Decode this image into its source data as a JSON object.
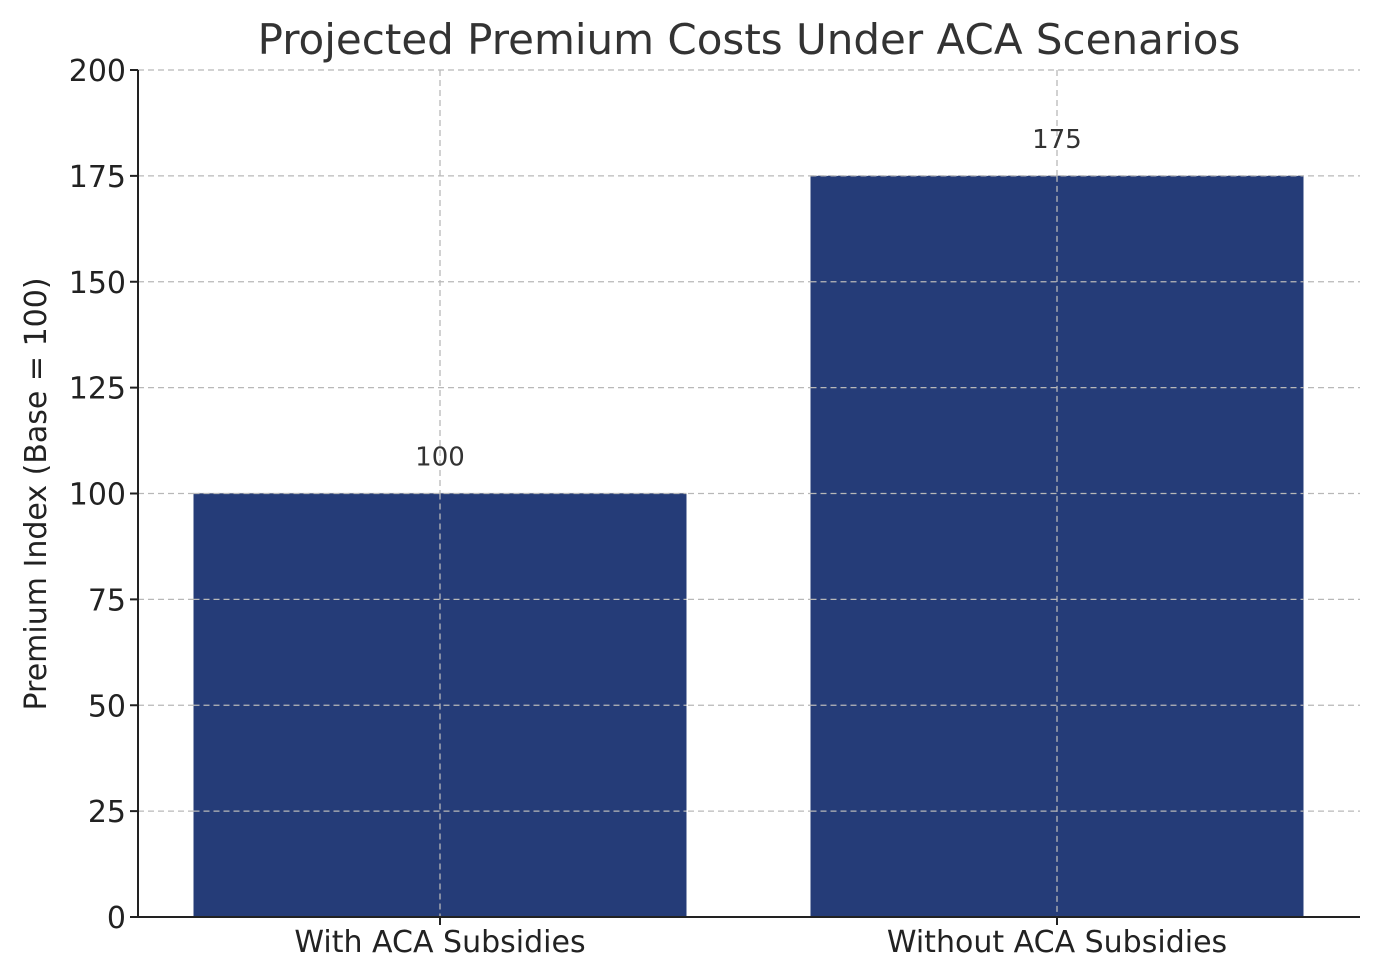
{
  "chart_data": {
    "type": "bar",
    "title": "Projected Premium Costs Under ACA Scenarios",
    "xlabel": "",
    "ylabel": "Premium Index (Base = 100)",
    "categories": [
      "With ACA Subsidies",
      "Without ACA Subsidies"
    ],
    "values": [
      100,
      175
    ],
    "data_labels": [
      "100",
      "175"
    ],
    "ylim": [
      0,
      200
    ],
    "yticks": [
      0,
      25,
      50,
      75,
      100,
      125,
      150,
      175,
      200
    ],
    "ytick_labels": [
      "0",
      "25",
      "50",
      "75",
      "100",
      "125",
      "150",
      "175",
      "200"
    ],
    "grid": true,
    "bar_color": "#253c78",
    "grid_color": "#b8b8b8"
  }
}
